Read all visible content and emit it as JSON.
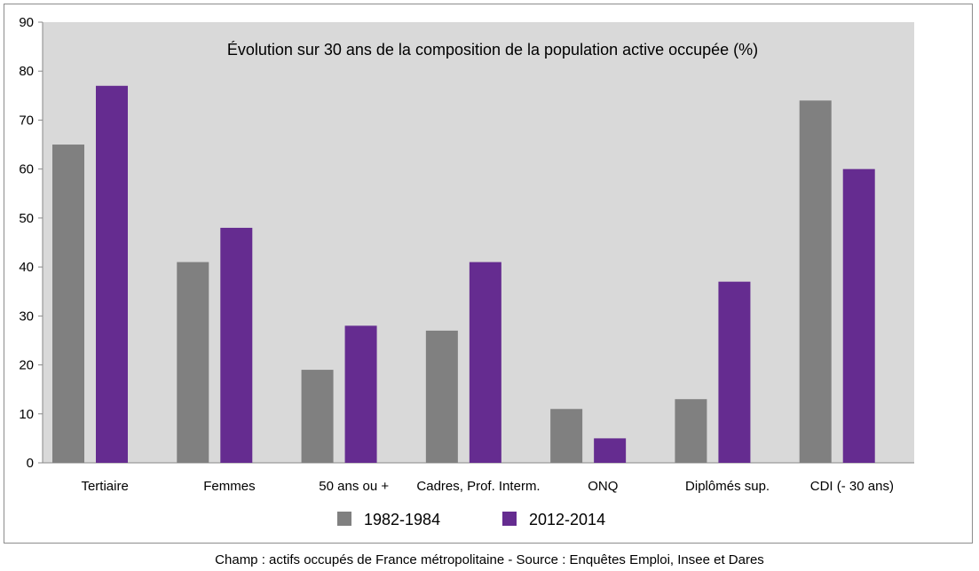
{
  "chart_data": {
    "type": "bar",
    "title": "Évolution sur 30 ans de la composition de la population active occupée (%)",
    "categories": [
      "Tertiaire",
      "Femmes",
      "50 ans ou +",
      "Cadres, Prof. Interm.",
      "ONQ",
      "Diplômés sup.",
      "CDI (- 30 ans)"
    ],
    "series": [
      {
        "name": "1982-1984",
        "color": "#808080",
        "values": [
          65,
          41,
          19,
          27,
          11,
          13,
          74
        ]
      },
      {
        "name": "2012-2014",
        "color": "#652c90",
        "values": [
          77,
          48,
          28,
          41,
          5,
          37,
          60
        ]
      }
    ],
    "ylim": [
      0,
      90
    ],
    "yticks": [
      0,
      10,
      20,
      30,
      40,
      50,
      60,
      70,
      80,
      90
    ],
    "plot_background": "#d9d9d9",
    "grid": false,
    "legend": "bottom"
  },
  "footer": "Champ : actifs occupés de France métropolitaine - Source : Enquêtes Emploi, Insee et Dares"
}
